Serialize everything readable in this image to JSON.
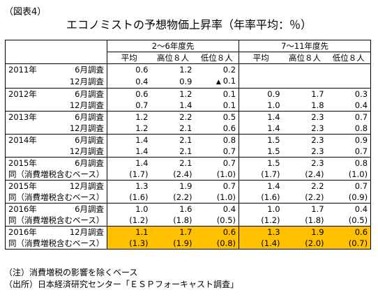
{
  "figure_label": "（図表4）",
  "title": "エコノミストの予想物価上昇率（年率平均：％）",
  "header": {
    "group1": "2～6年度先",
    "group2": "7～11年度先",
    "cols": [
      "平均",
      "高位８人",
      "低位８人",
      "平均",
      "高位８人",
      "低位８人"
    ]
  },
  "rows": [
    {
      "year": "2011年",
      "survey": "6月調査",
      "values": [
        "0.6",
        "1.2",
        "0.2",
        "",
        "",
        ""
      ],
      "neg_mark": "",
      "bottom": false,
      "highlight": false
    },
    {
      "year": "",
      "survey": "12月調査",
      "values": [
        "0.4",
        "0.9",
        "0.1",
        "",
        "",
        ""
      ],
      "neg_mark": "▲",
      "bottom": true,
      "highlight": false
    },
    {
      "year": "2012年",
      "survey": "6月調査",
      "values": [
        "0.6",
        "1.2",
        "0.1",
        "0.9",
        "1.7",
        "0.3"
      ],
      "neg_mark": "",
      "bottom": false,
      "highlight": false
    },
    {
      "year": "",
      "survey": "12月調査",
      "values": [
        "0.7",
        "1.4",
        "0.1",
        "1.0",
        "1.8",
        "0.4"
      ],
      "neg_mark": "",
      "bottom": true,
      "highlight": false
    },
    {
      "year": "2013年",
      "survey": "6月調査",
      "values": [
        "1.2",
        "2.2",
        "0.5",
        "1.4",
        "2.3",
        "0.7"
      ],
      "neg_mark": "",
      "bottom": false,
      "highlight": false
    },
    {
      "year": "",
      "survey": "12月調査",
      "values": [
        "1.2",
        "2.1",
        "0.6",
        "1.4",
        "2.3",
        "0.8"
      ],
      "neg_mark": "",
      "bottom": true,
      "highlight": false
    },
    {
      "year": "2014年",
      "survey": "6月調査",
      "values": [
        "1.4",
        "2.1",
        "0.8",
        "1.5",
        "2.3",
        "0.9"
      ],
      "neg_mark": "",
      "bottom": false,
      "highlight": false
    },
    {
      "year": "",
      "survey": "12月調査",
      "values": [
        "1.4",
        "2.1",
        "0.7",
        "1.5",
        "2.3",
        "0.7"
      ],
      "neg_mark": "",
      "bottom": true,
      "highlight": false
    },
    {
      "year": "2015年",
      "survey": "6月調査",
      "values": [
        "1.4",
        "2.1",
        "0.7",
        "1.5",
        "2.3",
        "0.8"
      ],
      "neg_mark": "",
      "bottom": false,
      "highlight": false
    },
    {
      "year": "同（消費増税含むベース）",
      "survey": "",
      "values": [
        "(1.7)",
        "(2.4)",
        "(1.0)",
        "(1.7)",
        "(2.4)",
        "(1.0)"
      ],
      "neg_mark": "",
      "bottom": true,
      "highlight": false
    },
    {
      "year": "2015年",
      "survey": "12月調査",
      "values": [
        "1.3",
        "1.9",
        "0.7",
        "1.4",
        "2.2",
        "0.7"
      ],
      "neg_mark": "",
      "bottom": false,
      "highlight": false
    },
    {
      "year": "同（消費増税含むベース）",
      "survey": "",
      "values": [
        "(1.6)",
        "(2.2)",
        "(1.0)",
        "(1.6)",
        "(2.2)",
        "(0.9)"
      ],
      "neg_mark": "",
      "bottom": true,
      "highlight": false
    },
    {
      "year": "2016年",
      "survey": "6月調査",
      "values": [
        "1.0",
        "1.6",
        "0.4",
        "1.0",
        "1.7",
        "0.4"
      ],
      "neg_mark": "",
      "bottom": false,
      "highlight": false
    },
    {
      "year": "同（消費増税含むベース）",
      "survey": "",
      "values": [
        "(1.2)",
        "(1.8)",
        "(0.5)",
        "(1.2)",
        "(1.8)",
        "(0.5)"
      ],
      "neg_mark": "",
      "bottom": true,
      "highlight": false
    },
    {
      "year": "2016年",
      "survey": "12月調査",
      "values": [
        "1.1",
        "1.7",
        "0.6",
        "1.3",
        "1.9",
        "0.6"
      ],
      "neg_mark": "",
      "bottom": false,
      "highlight": true
    },
    {
      "year": "同（消費増税含むベース）",
      "survey": "",
      "values": [
        "(1.3)",
        "(1.9)",
        "(0.8)",
        "(1.4)",
        "(2.0)",
        "(0.7)"
      ],
      "neg_mark": "",
      "bottom": true,
      "highlight": true
    }
  ],
  "notes": [
    "（注）消費増税の影響を除くベース",
    "（出所）日本経済研究センター「ＥＳＰフォーキャスト調査」"
  ],
  "highlight_color": "#FFC000"
}
